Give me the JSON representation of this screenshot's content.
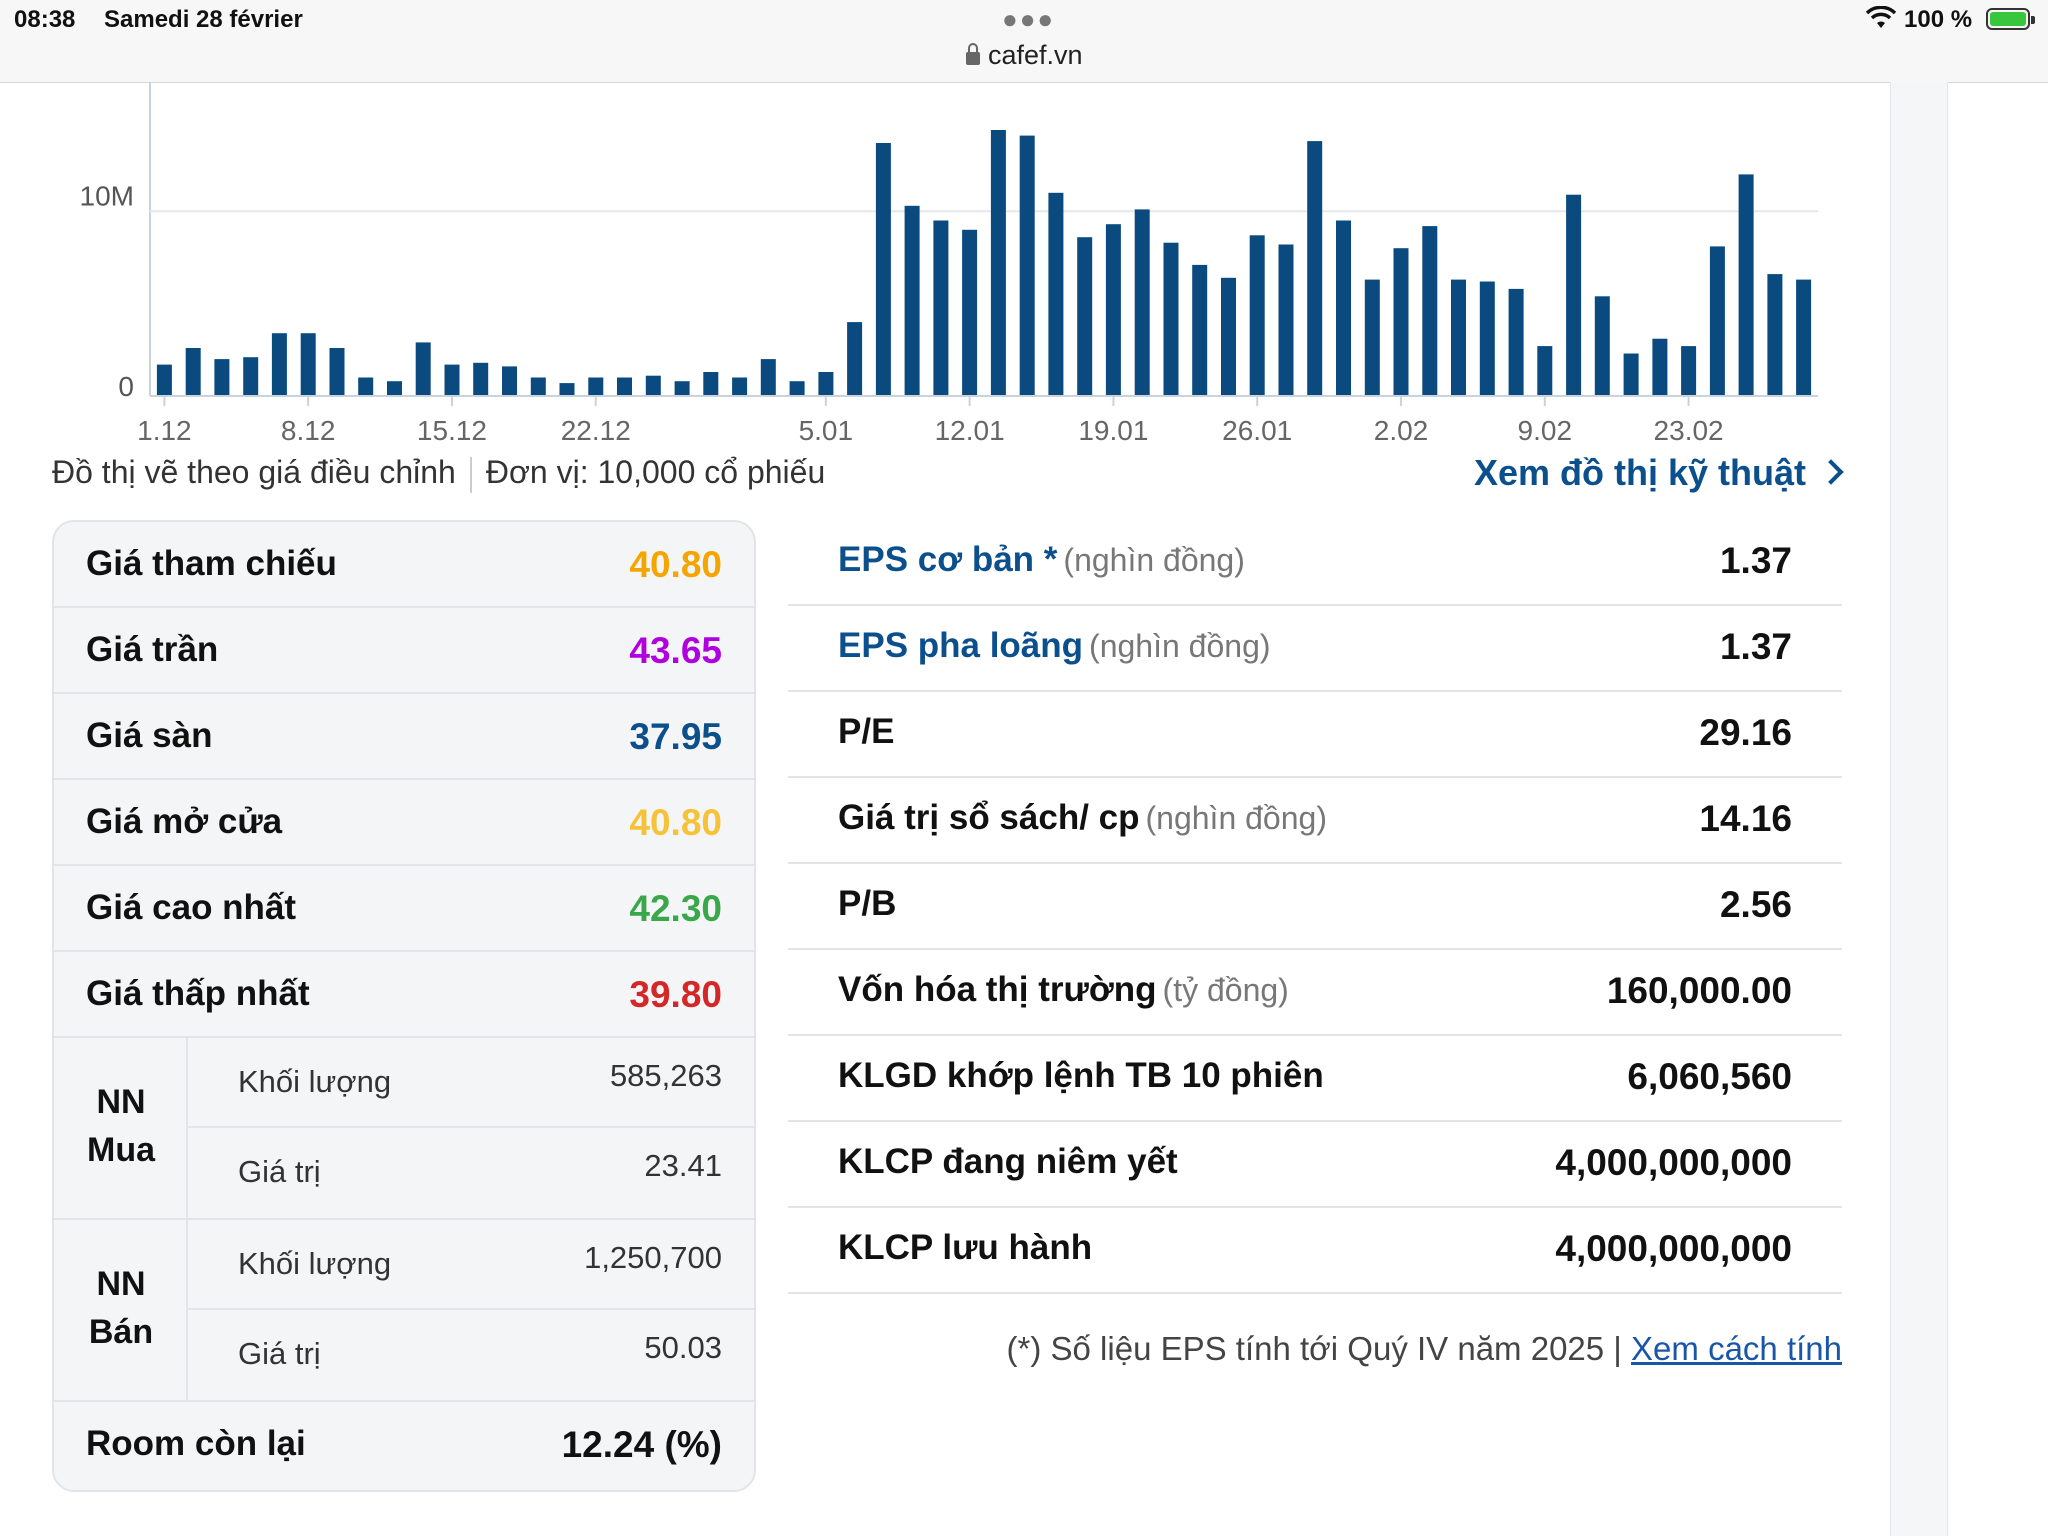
{
  "status_bar": {
    "time": "08:38",
    "date": "Samedi 28 février",
    "url": "cafef.vn",
    "battery": "100 %"
  },
  "chart_data": {
    "type": "bar",
    "title": "",
    "xlabel": "",
    "ylabel": "",
    "ylim": [
      0,
      17
    ],
    "y_ticks": [
      {
        "value": 0,
        "label": "0"
      },
      {
        "value": 10,
        "label": "10M"
      }
    ],
    "x_tick_labels": [
      "1.12",
      "8.12",
      "15.12",
      "22.12",
      "5.01",
      "12.01",
      "19.01",
      "26.01",
      "2.02",
      "9.02",
      "23.02"
    ],
    "x_tick_index": [
      0,
      5,
      10,
      15,
      23,
      28,
      33,
      38,
      43,
      48,
      53
    ],
    "values": [
      1.7,
      2.6,
      2.0,
      2.1,
      3.4,
      3.4,
      2.6,
      1.0,
      0.8,
      2.9,
      1.7,
      1.8,
      1.6,
      1.0,
      0.7,
      1.0,
      1.0,
      1.1,
      0.8,
      1.3,
      1.0,
      2.0,
      0.8,
      1.3,
      4.0,
      13.7,
      10.3,
      9.5,
      9.0,
      14.4,
      14.1,
      11.0,
      8.6,
      9.3,
      10.1,
      8.3,
      7.1,
      6.4,
      8.7,
      8.2,
      13.8,
      9.5,
      6.3,
      8.0,
      9.2,
      6.3,
      6.2,
      5.8,
      2.7,
      10.9,
      5.4,
      2.3,
      3.1,
      2.7,
      8.1,
      12.0,
      6.6,
      6.3
    ],
    "bar_color": "#0b4a7e",
    "grid": true
  },
  "chart_footer": {
    "note": "Đồ thị vẽ theo giá điều chỉnh",
    "unit": "Đơn vị: 10,000 cổ phiếu",
    "tech_link": "Xem đồ thị kỹ thuật"
  },
  "prices": [
    {
      "label": "Giá tham chiếu",
      "value": "40.80",
      "color": "#f5a500"
    },
    {
      "label": "Giá trần",
      "value": "43.65",
      "color": "#b000e0"
    },
    {
      "label": "Giá sàn",
      "value": "37.95",
      "color": "#0b4f8c"
    },
    {
      "label": "Giá mở cửa",
      "value": "40.80",
      "color": "#f6c338"
    },
    {
      "label": "Giá cao nhất",
      "value": "42.30",
      "color": "#3aa84a"
    },
    {
      "label": "Giá thấp nhất",
      "value": "39.80",
      "color": "#d42828"
    }
  ],
  "nn_buy": {
    "label_line1": "NN",
    "label_line2": "Mua",
    "volume_label": "Khối lượng",
    "volume": "585,263",
    "value_label": "Giá trị",
    "value": "23.41"
  },
  "nn_sell": {
    "label_line1": "NN",
    "label_line2": "Bán",
    "volume_label": "Khối lượng",
    "volume": "1,250,700",
    "value_label": "Giá trị",
    "value": "50.03"
  },
  "room": {
    "label": "Room còn lại",
    "value": "12.24 (%)"
  },
  "metrics": [
    {
      "label": "EPS cơ bản *",
      "unit": "(nghìn đồng)",
      "value": "1.37",
      "link": true
    },
    {
      "label": "EPS pha loãng",
      "unit": "(nghìn đồng)",
      "value": "1.37",
      "link": true
    },
    {
      "label": "P/E",
      "unit": "",
      "value": "29.16",
      "link": false
    },
    {
      "label": "Giá trị sổ sách/ cp",
      "unit": "(nghìn đồng)",
      "value": "14.16",
      "link": false
    },
    {
      "label": "P/B",
      "unit": "",
      "value": "2.56",
      "link": false
    },
    {
      "label": "Vốn hóa thị trường",
      "unit": "(tỷ đồng)",
      "value": "160,000.00",
      "link": false
    },
    {
      "label": "KLGD khớp lệnh TB 10 phiên",
      "unit": "",
      "value": "6,060,560",
      "link": false
    },
    {
      "label": "KLCP đang niêm yết",
      "unit": "",
      "value": "4,000,000,000",
      "link": false
    },
    {
      "label": "KLCP lưu hành",
      "unit": "",
      "value": "4,000,000,000",
      "link": false
    }
  ],
  "footnote": {
    "text": "(*) Số liệu EPS tính tới Quý IV năm 2025 |",
    "link": "Xem cách tính"
  }
}
